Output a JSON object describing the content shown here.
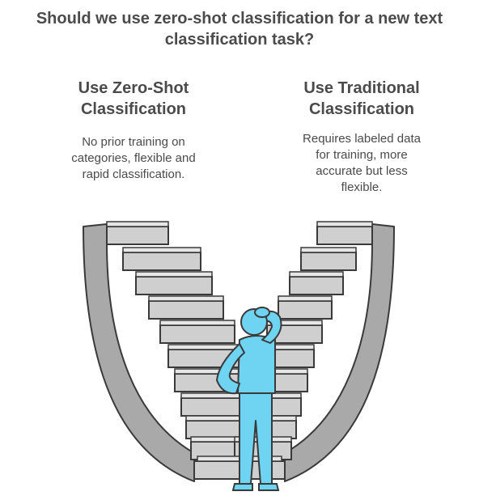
{
  "title": {
    "line1": "Should we use zero-shot classification for a new text",
    "line2": "classification task?"
  },
  "options": {
    "zero_shot": {
      "heading_line1": "Use Zero-Shot",
      "heading_line2": "Classification",
      "desc_line1": "No prior training on",
      "desc_line2": "categories, flexible and",
      "desc_line3": "rapid classification."
    },
    "traditional": {
      "heading_line1": "Use Traditional",
      "heading_line2": "Classification",
      "desc_line1": "Requires labeled data",
      "desc_line2": "for training, more",
      "desc_line3": "accurate but less",
      "desc_line4": "flexible."
    }
  },
  "colors": {
    "stair_face": "#cfcfcf",
    "stair_side": "#a9a9a9",
    "stair_dark": "#8f8f8f",
    "outline": "#3a3a3a",
    "person": "#6fd3f2"
  }
}
